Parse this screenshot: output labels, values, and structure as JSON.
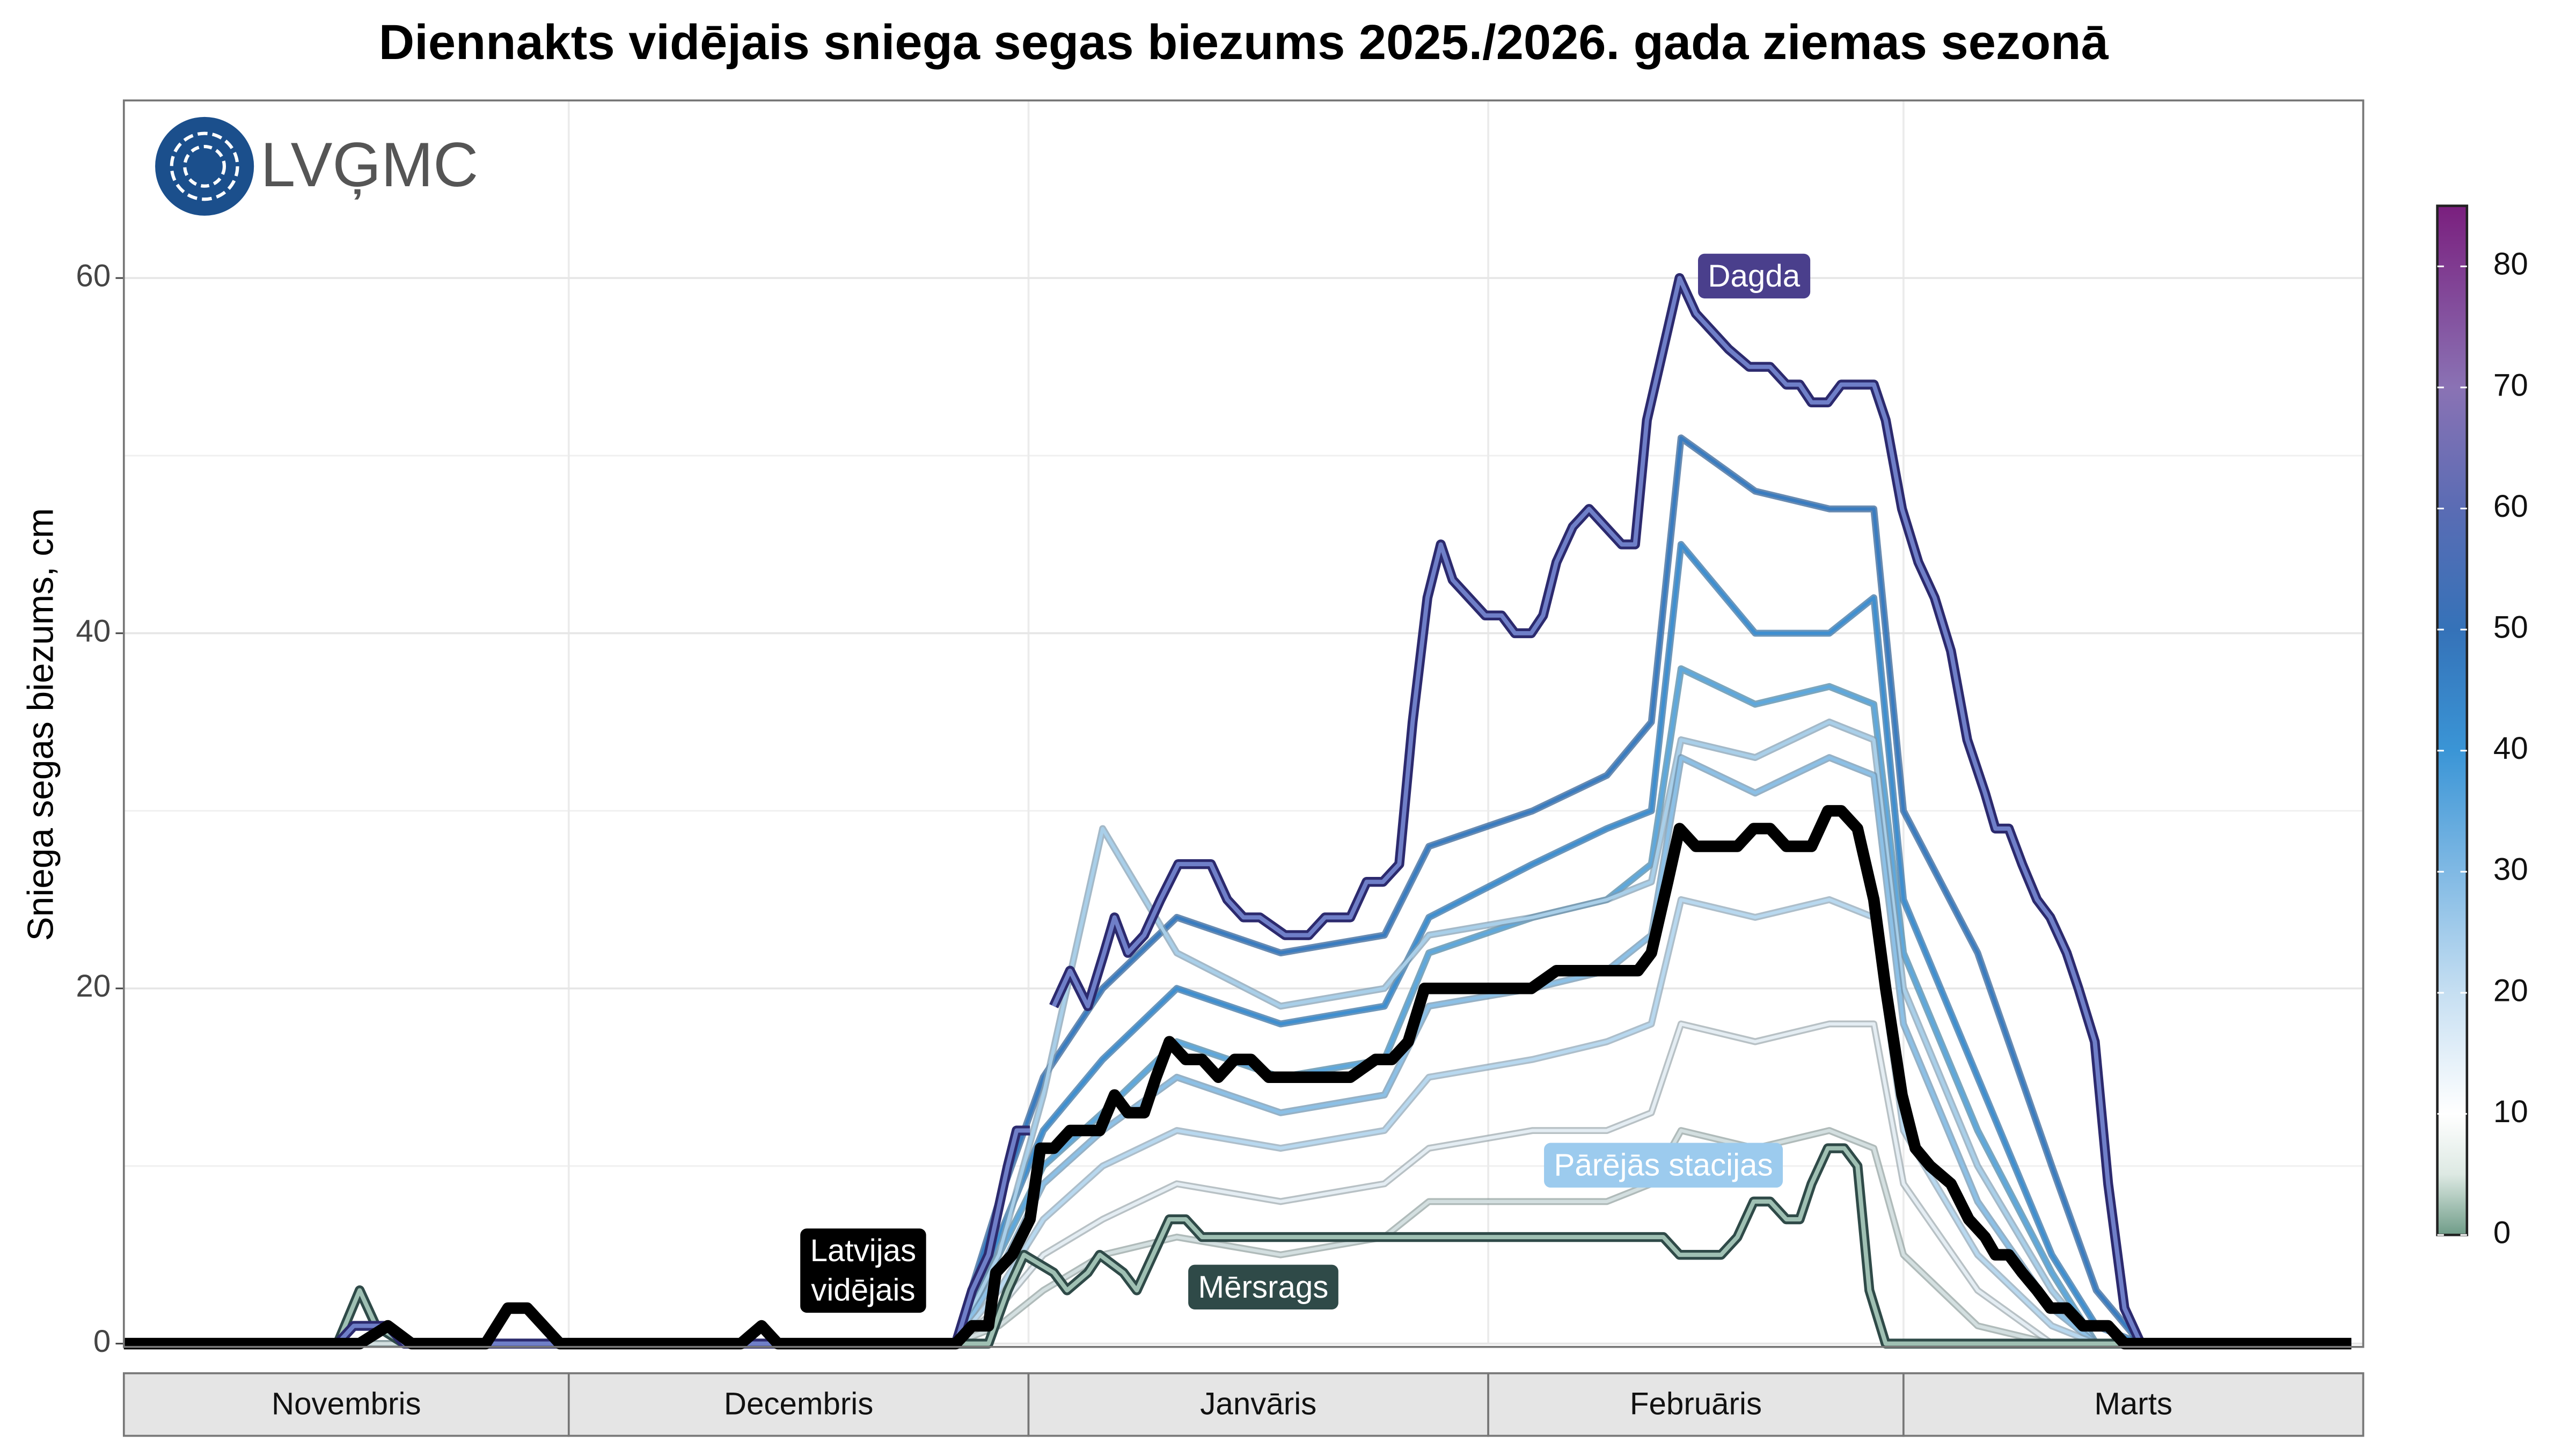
{
  "chart_data": {
    "type": "line",
    "title": "Diennakts vidējais sniega segas biezums 2025./2026. gada ziemas sezonā",
    "y_label": "Sniega segas biezums, cm",
    "logo": "LVĢMC",
    "ylim": [
      0,
      70
    ],
    "yticks": [
      0,
      20,
      40,
      60
    ],
    "y_minor_grid": [
      10,
      30,
      50
    ],
    "xlim": [
      0,
      151
    ],
    "xticks": [
      0,
      30,
      61,
      92,
      120,
      151
    ],
    "categories": [
      "Novembris",
      "Decembris",
      "Janvāris",
      "Februāris",
      "Marts"
    ],
    "grid": true,
    "annotation": "Pārējās stacijas",
    "annotation_color": "#9ccbee",
    "colorbar": {
      "lim": [
        0,
        85
      ],
      "ticks": [
        0,
        10,
        20,
        30,
        40,
        50,
        60,
        70,
        80
      ],
      "stops": [
        {
          "value": 0,
          "color": "#6f9c88"
        },
        {
          "value": 5,
          "color": "#dde9e3"
        },
        {
          "value": 10,
          "color": "#ffffff"
        },
        {
          "value": 20,
          "color": "#c6dff2"
        },
        {
          "value": 30,
          "color": "#80b9e4"
        },
        {
          "value": 40,
          "color": "#3a95d6"
        },
        {
          "value": 50,
          "color": "#3572b8"
        },
        {
          "value": 60,
          "color": "#5a6cb4"
        },
        {
          "value": 70,
          "color": "#8a72b4"
        },
        {
          "value": 85,
          "color": "#7a1f7e"
        }
      ]
    },
    "series": [
      {
        "color": "#3a7cc0",
        "edge": "#2a5a90",
        "x": [
          0,
          56,
          59,
          62,
          66,
          71,
          78,
          85,
          88,
          95,
          100,
          103,
          105,
          110,
          115,
          118,
          120,
          125,
          130,
          133,
          136,
          150
        ],
        "values": [
          0,
          0,
          8,
          15,
          20,
          24,
          22,
          23,
          28,
          30,
          32,
          35,
          51,
          48,
          47,
          47,
          30,
          22,
          10,
          3,
          0,
          0
        ]
      },
      {
        "color": "#3f8fd0",
        "edge": "#2e6a9c",
        "x": [
          0,
          56,
          59,
          62,
          66,
          71,
          78,
          85,
          88,
          95,
          100,
          103,
          105,
          110,
          115,
          118,
          120,
          125,
          130,
          133,
          136,
          150
        ],
        "values": [
          0,
          0,
          6,
          12,
          16,
          20,
          18,
          19,
          24,
          27,
          29,
          30,
          45,
          40,
          40,
          42,
          25,
          15,
          5,
          1,
          0,
          0
        ]
      },
      {
        "color": "#5fa8dc",
        "edge": "#46809f",
        "x": [
          0,
          56,
          59,
          62,
          66,
          71,
          78,
          85,
          88,
          95,
          100,
          103,
          105,
          110,
          115,
          118,
          120,
          125,
          130,
          133,
          136,
          150
        ],
        "values": [
          0,
          0,
          5,
          10,
          13,
          17,
          15,
          16,
          22,
          24,
          25,
          27,
          38,
          36,
          37,
          36,
          22,
          12,
          4,
          0,
          0,
          0
        ]
      },
      {
        "color": "#a9cfe9",
        "edge": "#7d9bb0",
        "x": [
          0,
          56,
          59,
          62,
          66,
          71,
          78,
          85,
          88,
          95,
          100,
          103,
          105,
          110,
          115,
          118,
          120,
          125,
          130,
          133,
          136,
          150
        ],
        "values": [
          0,
          0,
          5,
          14,
          29,
          22,
          19,
          20,
          23,
          24,
          25,
          26,
          34,
          33,
          35,
          34,
          20,
          10,
          3,
          0,
          0,
          0
        ]
      },
      {
        "color": "#8cc0e6",
        "edge": "#6a90ad",
        "x": [
          0,
          56,
          59,
          62,
          66,
          71,
          78,
          85,
          88,
          95,
          100,
          103,
          105,
          110,
          115,
          118,
          120,
          125,
          130,
          133,
          136,
          150
        ],
        "values": [
          0,
          0,
          4,
          9,
          12,
          15,
          13,
          14,
          19,
          20,
          21,
          23,
          33,
          31,
          33,
          32,
          18,
          8,
          2,
          0,
          0,
          0
        ]
      },
      {
        "color": "#b8d8ef",
        "edge": "#8aa2b3",
        "x": [
          0,
          56,
          59,
          62,
          66,
          71,
          78,
          85,
          88,
          95,
          100,
          103,
          105,
          110,
          115,
          118,
          120,
          125,
          130,
          133,
          136,
          150
        ],
        "values": [
          0,
          0,
          3,
          7,
          10,
          12,
          11,
          12,
          15,
          16,
          17,
          18,
          25,
          24,
          25,
          24,
          12,
          5,
          1,
          0,
          0,
          0
        ]
      },
      {
        "color": "#e4edf3",
        "edge": "#9aa6ad",
        "x": [
          0,
          56,
          59,
          62,
          66,
          71,
          78,
          85,
          88,
          95,
          100,
          103,
          105,
          110,
          115,
          118,
          120,
          125,
          130,
          133,
          136,
          150
        ],
        "values": [
          0,
          0,
          2,
          5,
          7,
          9,
          8,
          9,
          11,
          12,
          12,
          13,
          18,
          17,
          18,
          18,
          9,
          3,
          0,
          0,
          0,
          0
        ]
      },
      {
        "color": "#d3dfe0",
        "edge": "#8e9e9c",
        "x": [
          0,
          56,
          59,
          62,
          66,
          71,
          78,
          85,
          88,
          95,
          100,
          103,
          105,
          110,
          115,
          118,
          120,
          125,
          130,
          133,
          136,
          150
        ],
        "values": [
          0,
          0,
          1,
          3,
          5,
          6,
          5,
          6,
          8,
          8,
          8,
          9,
          12,
          11,
          12,
          11,
          5,
          1,
          0,
          0,
          0,
          0
        ]
      },
      {
        "name": "Mērsrags",
        "color": "#9fc0b3",
        "edge": "#2f4a48",
        "x": [
          0,
          14.4,
          15.9,
          17,
          18.9,
          58.3,
          59.6,
          60.7,
          62.7,
          63.6,
          65,
          65.8,
          67.4,
          68.3,
          69.4,
          70.5,
          71.6,
          72.7,
          103.8,
          104.9,
          107.7,
          108.8,
          109.9,
          111,
          112.1,
          113,
          113.8,
          114.9,
          116,
          116.9,
          117.7,
          118.8,
          150.2
        ],
        "values": [
          0,
          0,
          3,
          1,
          0,
          0,
          3,
          5,
          4,
          3,
          4,
          5,
          4,
          3,
          5,
          7,
          7,
          6,
          6,
          5,
          5,
          6,
          8,
          8,
          7,
          7,
          9,
          11,
          11,
          10,
          3,
          0,
          0
        ]
      },
      {
        "name": "Dagda",
        "color": "#6f7fc8",
        "edge": "#2c2a6e",
        "x": [
          0,
          14.4,
          15.5,
          17.8,
          18.9,
          56.1,
          57.2,
          58.3,
          59.6,
          60.2,
          61.1,
          61.9,
          62.7,
          63.8,
          65,
          66.1,
          66.8,
          67.7,
          68.8,
          69.9,
          71.1,
          73.3,
          74.4,
          75.5,
          76.6,
          78.3,
          79.9,
          81,
          82.7,
          83.8,
          84.9,
          86,
          86.9,
          87.9,
          88.8,
          89.6,
          90.7,
          91.8,
          92.9,
          93.8,
          94.9,
          95.7,
          96.6,
          97.7,
          98.8,
          99.9,
          101,
          101.9,
          102.7,
          103.8,
          104.9,
          106,
          107.1,
          108.2,
          109.6,
          111,
          112.1,
          113,
          113.8,
          114.9,
          115.8,
          118,
          118.8,
          119.9,
          121,
          122.1,
          123.2,
          124.3,
          125.5,
          126.2,
          127.1,
          128,
          129,
          129.9,
          131,
          131.8,
          132.9,
          133.8,
          134.9,
          136,
          150.2
        ],
        "values": [
          0,
          0,
          1,
          1,
          0,
          0,
          3,
          5,
          10,
          12,
          12,
          null,
          19,
          21,
          19,
          22,
          24,
          22,
          23,
          25,
          27,
          27,
          25,
          24,
          24,
          23,
          23,
          24,
          24,
          26,
          26,
          27,
          35,
          42,
          45,
          43,
          42,
          41,
          41,
          40,
          40,
          41,
          44,
          46,
          47,
          46,
          45,
          45,
          52,
          56,
          60,
          58,
          57,
          56,
          55,
          55,
          54,
          54,
          53,
          53,
          54,
          54,
          52,
          47,
          44,
          42,
          39,
          34,
          31,
          29,
          29,
          27,
          25,
          24,
          22,
          20,
          17,
          9,
          2,
          0,
          0
        ]
      },
      {
        "name": "Latvijas vidējais",
        "color": "#000000",
        "x": [
          0,
          15.9,
          17.8,
          19.4,
          24.4,
          25.9,
          27.2,
          29.4,
          41.6,
          43,
          44.1,
          56.1,
          57.2,
          58.3,
          58.8,
          59.9,
          61.1,
          61.8,
          62.7,
          63.8,
          65.8,
          66.8,
          67.7,
          68.8,
          69.6,
          70.5,
          71.6,
          72.7,
          73.8,
          74.9,
          76,
          77.2,
          82.7,
          84.4,
          85.5,
          86.6,
          87.7,
          94.9,
          96.6,
          102.1,
          103,
          104.1,
          104.9,
          106,
          108.8,
          109.9,
          111,
          112.1,
          113.8,
          114.9,
          115.8,
          116.9,
          118,
          118.8,
          119.9,
          120.8,
          121.8,
          123.2,
          124.4,
          125.5,
          126.2,
          127.1,
          128,
          129,
          129.9,
          131,
          132.1,
          133.8,
          134.9,
          150.2
        ],
        "values": [
          0,
          0,
          1,
          0,
          0,
          2,
          2,
          0,
          0,
          1,
          0,
          0,
          1,
          1,
          4,
          5,
          7,
          11,
          11,
          12,
          12,
          14,
          13,
          13,
          15,
          17,
          16,
          16,
          15,
          16,
          16,
          15,
          15,
          16,
          16,
          17,
          20,
          20,
          21,
          21,
          22,
          26,
          29,
          28,
          28,
          29,
          29,
          28,
          28,
          30,
          30,
          29,
          25,
          20,
          14,
          11,
          10,
          9,
          7,
          6,
          5,
          5,
          4,
          3,
          2,
          2,
          1,
          1,
          0,
          0
        ]
      }
    ]
  }
}
